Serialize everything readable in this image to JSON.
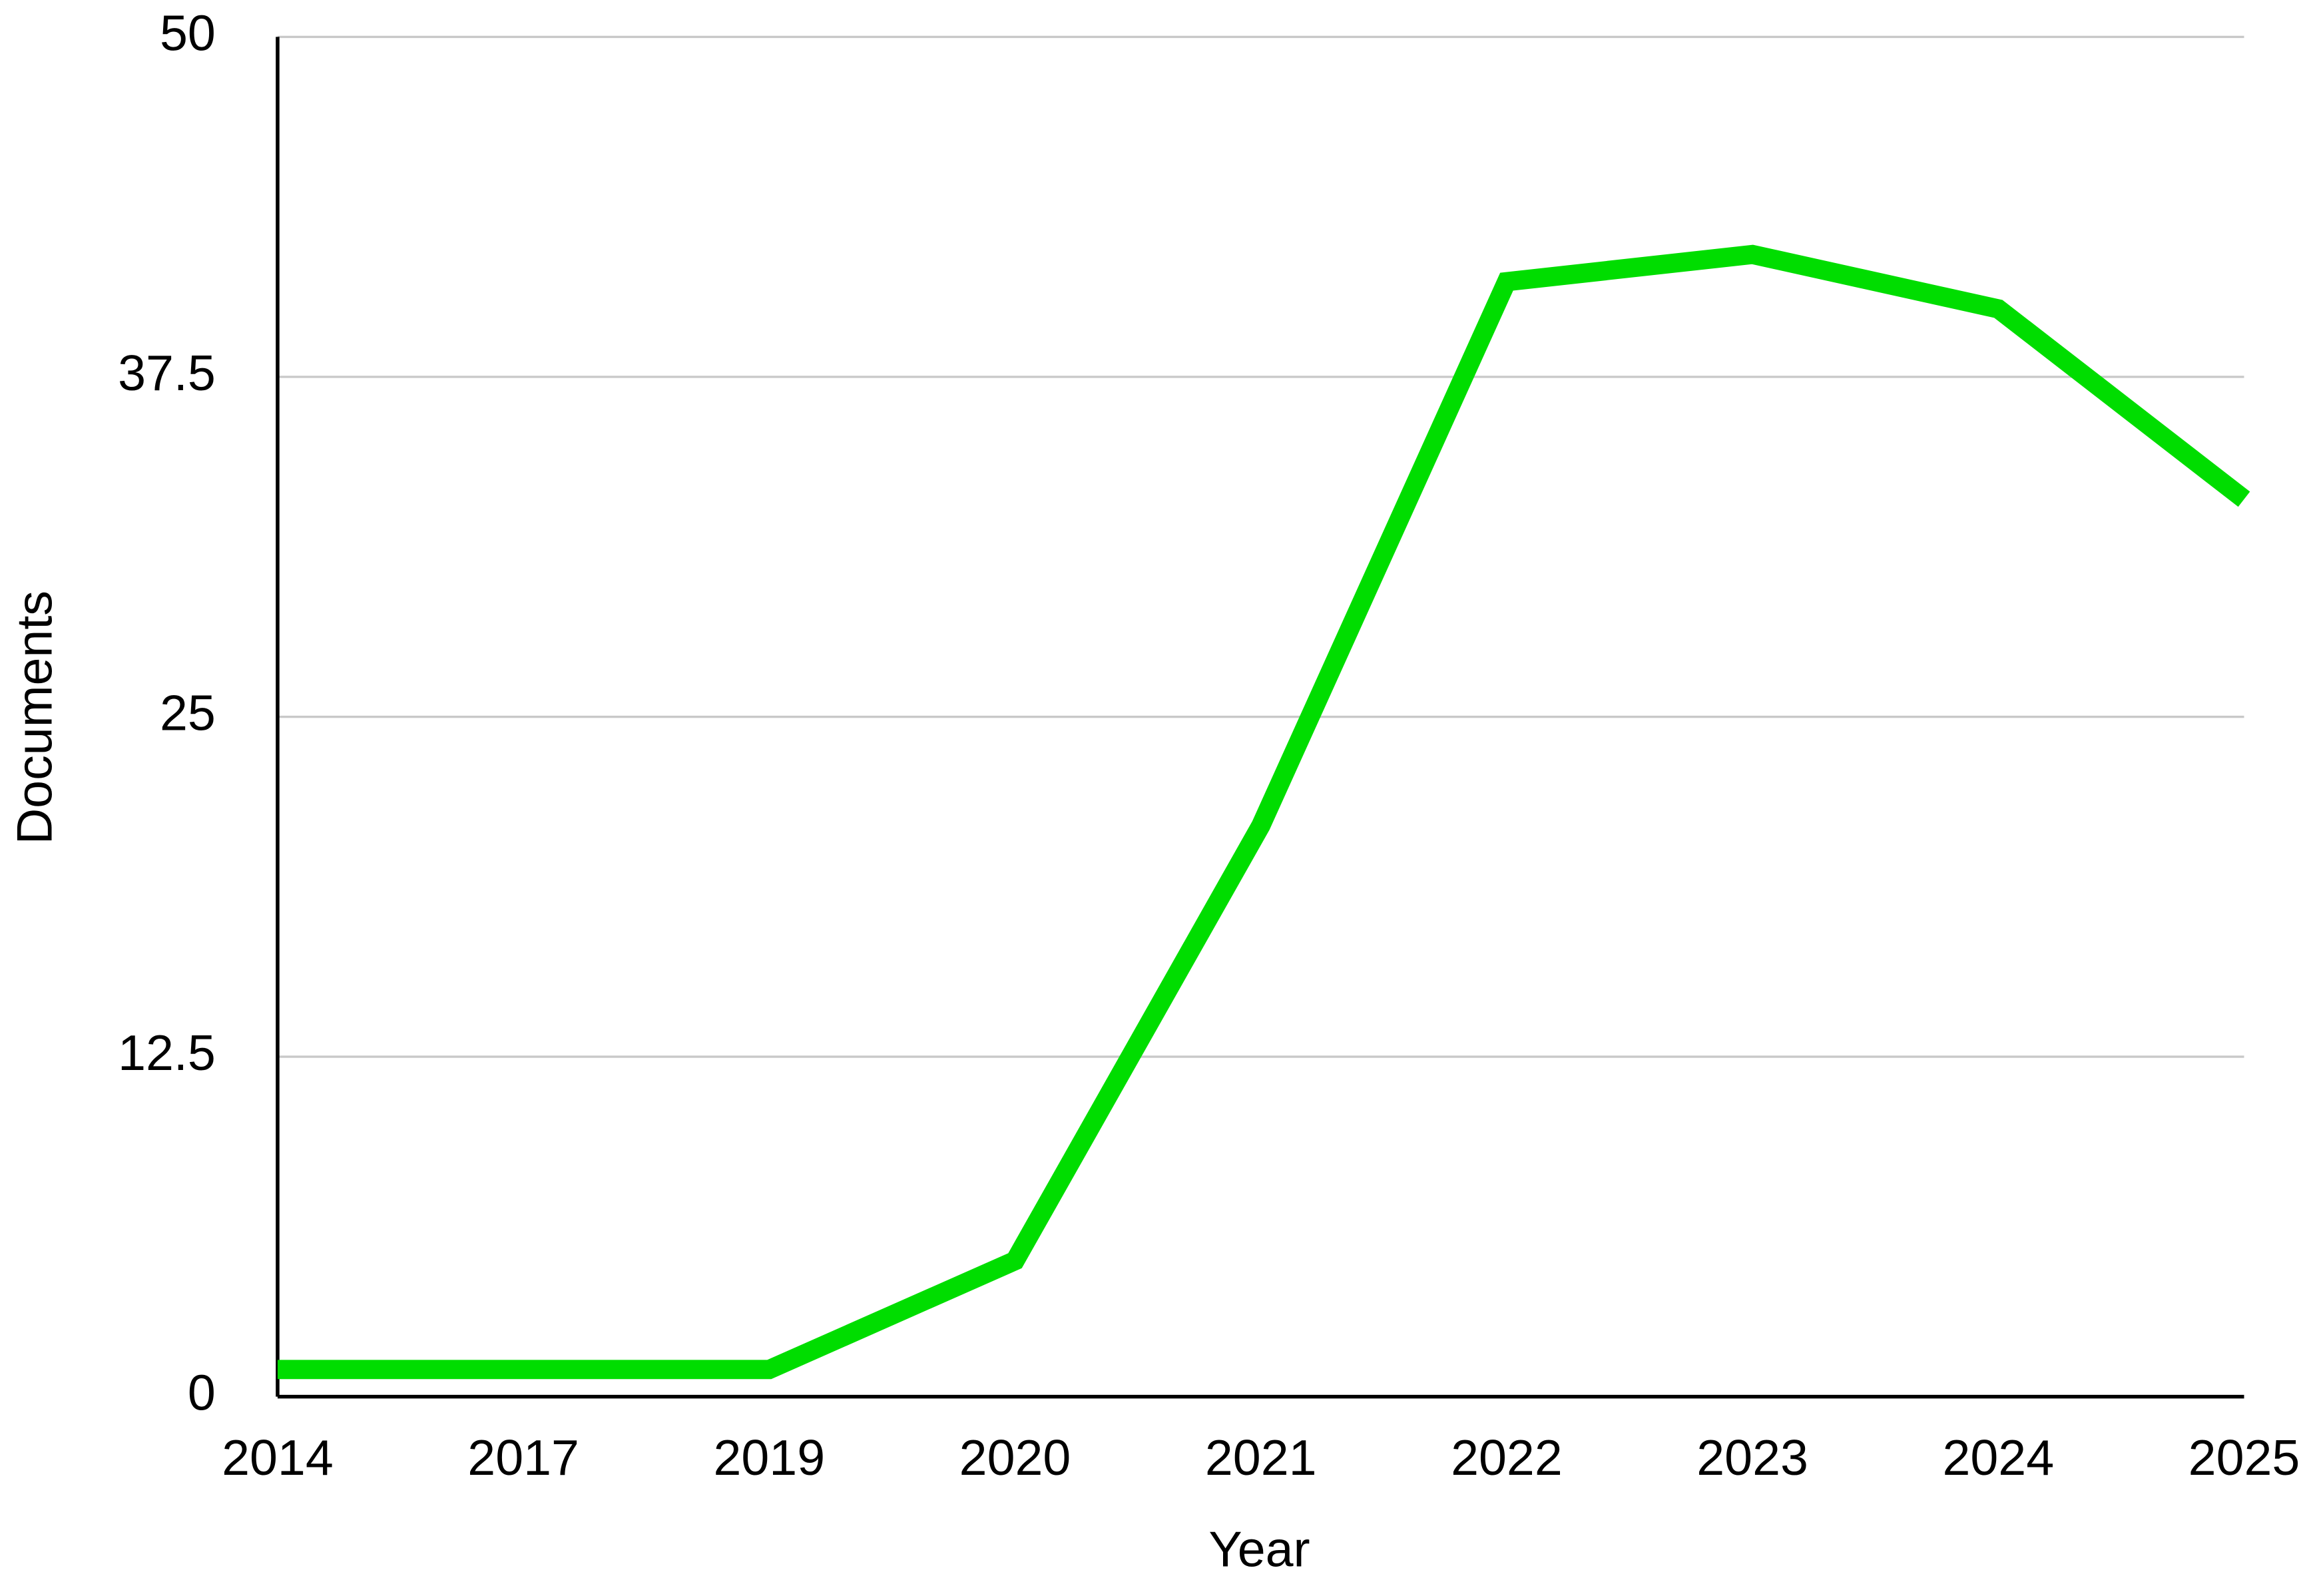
{
  "chart_data": {
    "type": "line",
    "x_label": "Year",
    "y_label": "Documents",
    "categories": [
      "2014",
      "2017",
      "2019",
      "2020",
      "2021",
      "2022",
      "2023",
      "2024",
      "2025"
    ],
    "series": [
      {
        "name": "Documents",
        "color": "#00dd00",
        "values": [
          1,
          1,
          1,
          5,
          21,
          41,
          42,
          40,
          33
        ]
      }
    ],
    "ylim": [
      0,
      50
    ],
    "yticks": [
      0,
      12.5,
      25,
      37.5,
      50
    ],
    "grid": true
  }
}
